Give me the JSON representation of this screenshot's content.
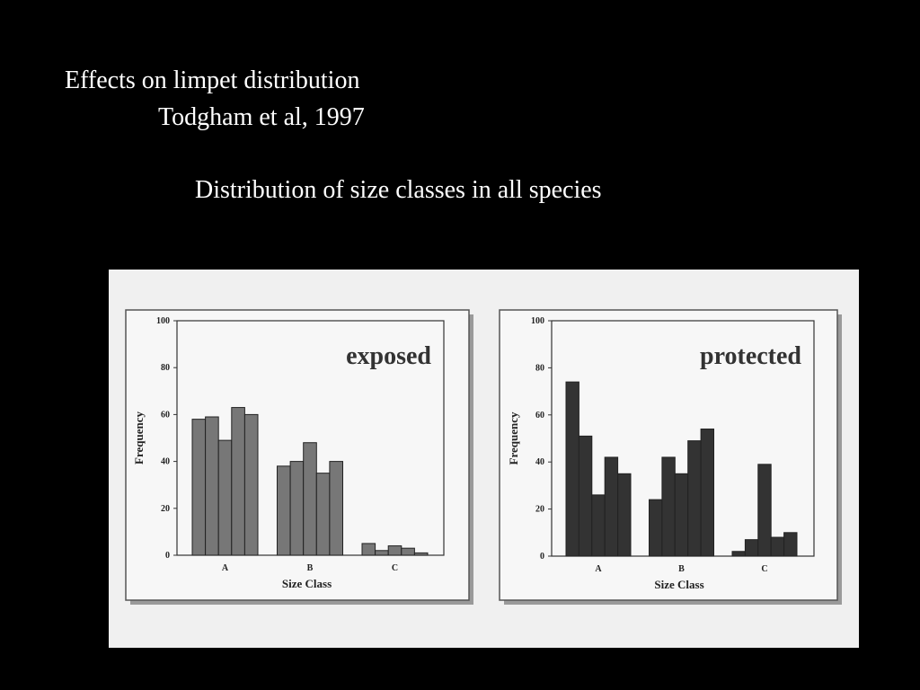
{
  "header": {
    "title": "Effects on limpet distribution",
    "citation": "Todgham et al, 1997",
    "subtitle": "Distribution of size classes in all species"
  },
  "chart_data": [
    {
      "type": "bar",
      "title": "exposed",
      "xlabel": "Size Class",
      "ylabel": "Frequency",
      "categories": [
        null,
        null,
        "A",
        null,
        null,
        null,
        null,
        "B",
        null,
        null,
        null,
        null,
        "C",
        null,
        null
      ],
      "values": [
        58,
        59,
        49,
        63,
        60,
        38,
        40,
        48,
        35,
        40,
        5,
        2,
        4,
        3,
        1
      ],
      "color": "#777777",
      "ylim": [
        0,
        100
      ],
      "yticks": [
        0,
        20,
        40,
        60,
        80,
        100
      ]
    },
    {
      "type": "bar",
      "title": "protected",
      "xlabel": "Size Class",
      "ylabel": "Frequency",
      "categories": [
        null,
        null,
        "A",
        null,
        null,
        null,
        null,
        "B",
        null,
        null,
        null,
        null,
        "C",
        null,
        null
      ],
      "values": [
        74,
        51,
        26,
        42,
        35,
        24,
        42,
        35,
        49,
        54,
        2,
        7,
        39,
        8,
        10
      ],
      "color": "#333333",
      "ylim": [
        0,
        100
      ],
      "yticks": [
        0,
        20,
        40,
        60,
        80,
        100
      ]
    }
  ]
}
